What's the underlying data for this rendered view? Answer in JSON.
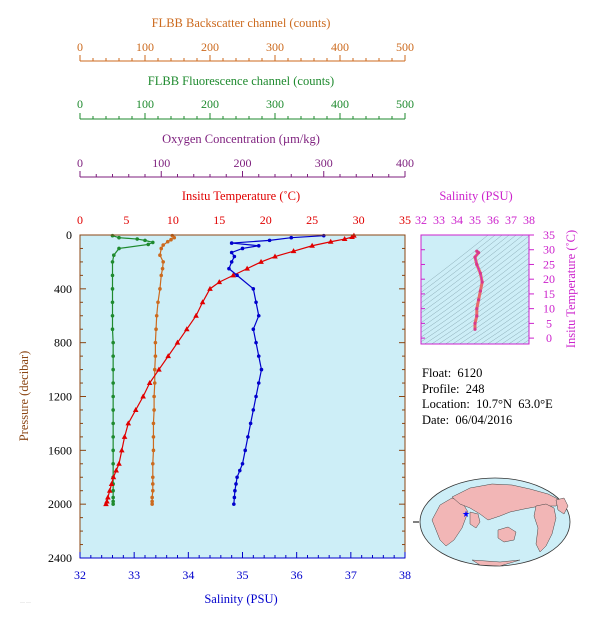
{
  "colors": {
    "backscatter": "#cc6a1e",
    "fluorescence": "#1e8a2e",
    "oxygen": "#7d1e7d",
    "temperature": "#e00000",
    "salinity_profile": "#0000cc",
    "salinity_axis": "#cc22cc",
    "plot_bg": "#cdeef7",
    "axis_frame": "#8b4513",
    "ts_curve": "#e86a6a"
  },
  "info": {
    "float": "Float:  6120",
    "profile": "Profile:  248",
    "location": "Location:  10.7°N  63.0°E",
    "date": "Date:  06/04/2016"
  },
  "map": {
    "marker_icon": "star-icon"
  },
  "chart_data": [
    {
      "type": "line",
      "title": "",
      "ylabel": "Pressure (decibar)",
      "ylim": [
        0,
        2400
      ],
      "yticks": [
        0,
        400,
        800,
        1200,
        1600,
        2000,
        2400
      ],
      "y_inverted": true,
      "grid": false,
      "axes": {
        "backscatter": {
          "label": "FLBB Backscatter channel (counts)",
          "range": [
            0,
            500
          ],
          "ticks": [
            0,
            100,
            200,
            300,
            400,
            500
          ]
        },
        "fluorescence": {
          "label": "FLBB Fluorescence channel (counts)",
          "range": [
            0,
            500
          ],
          "ticks": [
            0,
            100,
            200,
            300,
            400,
            500
          ]
        },
        "oxygen": {
          "label": "Oxygen Concentration (µm/kg)",
          "range": [
            0,
            400
          ],
          "ticks": [
            0,
            100,
            200,
            300,
            400
          ]
        },
        "temperature": {
          "label": "Insitu Temperature (˚C)",
          "range": [
            0,
            35
          ],
          "ticks": [
            0,
            5,
            10,
            15,
            20,
            25,
            30,
            35
          ]
        },
        "salinity": {
          "label": "Salinity (PSU)",
          "range": [
            32,
            38
          ],
          "ticks": [
            32,
            33,
            34,
            35,
            36,
            37,
            38
          ]
        }
      },
      "series": [
        {
          "axis": "backscatter",
          "marker": "circle",
          "x": [
            142,
            145,
            140,
            135,
            128,
            125,
            123,
            128,
            127,
            125,
            123,
            120,
            118,
            117,
            116,
            116,
            115,
            115,
            114,
            114,
            113,
            113,
            113,
            112,
            112,
            112,
            112,
            111,
            111,
            111
          ],
          "y": [
            5,
            20,
            35,
            50,
            75,
            100,
            150,
            200,
            250,
            300,
            400,
            500,
            600,
            700,
            800,
            900,
            1000,
            1100,
            1200,
            1300,
            1400,
            1500,
            1600,
            1700,
            1800,
            1850,
            1900,
            1950,
            1980,
            2000
          ]
        },
        {
          "axis": "fluorescence",
          "marker": "circle",
          "x": [
            50,
            60,
            88,
            100,
            112,
            105,
            60,
            52,
            50,
            50,
            50,
            50,
            50,
            50,
            51,
            51,
            51,
            51,
            51,
            51,
            51,
            51,
            51,
            51,
            51,
            51,
            51,
            51,
            51,
            51
          ],
          "y": [
            5,
            20,
            30,
            40,
            55,
            70,
            100,
            150,
            200,
            300,
            400,
            500,
            600,
            700,
            800,
            900,
            1000,
            1100,
            1200,
            1300,
            1400,
            1500,
            1600,
            1700,
            1800,
            1850,
            1900,
            1950,
            1980,
            2000
          ]
        },
        {
          "axis": "temperature",
          "marker": "triangle",
          "x": [
            29.5,
            29.3,
            28.5,
            27.0,
            25.0,
            23.0,
            21.0,
            19.5,
            18.0,
            16.5,
            15.0,
            14.0,
            13.2,
            12.5,
            11.5,
            10.5,
            9.5,
            8.5,
            7.5,
            6.8,
            6.0,
            5.2,
            4.8,
            4.5,
            4.2,
            3.9,
            3.6,
            3.4,
            3.2,
            3.0,
            2.9,
            2.8
          ],
          "y": [
            5,
            15,
            30,
            50,
            80,
            120,
            160,
            200,
            250,
            300,
            350,
            400,
            500,
            600,
            700,
            800,
            900,
            1000,
            1100,
            1200,
            1300,
            1400,
            1500,
            1600,
            1700,
            1750,
            1800,
            1850,
            1900,
            1950,
            1980,
            2000
          ]
        },
        {
          "axis": "salinity",
          "marker": "circle",
          "x": [
            36.5,
            35.9,
            35.5,
            34.8,
            35.3,
            35.0,
            34.8,
            34.85,
            34.8,
            34.75,
            34.9,
            35.2,
            35.25,
            35.3,
            35.2,
            35.25,
            35.3,
            35.35,
            35.3,
            35.25,
            35.2,
            35.15,
            35.1,
            35.05,
            35.0,
            34.95,
            34.9,
            34.88,
            34.86,
            34.85,
            34.84
          ],
          "y": [
            5,
            20,
            40,
            60,
            80,
            100,
            130,
            160,
            200,
            250,
            300,
            400,
            500,
            600,
            700,
            800,
            900,
            1000,
            1100,
            1200,
            1300,
            1400,
            1500,
            1600,
            1700,
            1750,
            1800,
            1850,
            1900,
            1950,
            2000
          ]
        }
      ]
    },
    {
      "type": "line",
      "title": "",
      "xlabel": "Salinity (PSU)",
      "ylabel": "Insitu Temperature (˚C)",
      "xlim": [
        32,
        38
      ],
      "ylim": [
        -2,
        35
      ],
      "xticks": [
        32,
        33,
        34,
        35,
        36,
        37,
        38
      ],
      "yticks": [
        0,
        5,
        10,
        15,
        20,
        25,
        30,
        35
      ],
      "grid": false,
      "series": [
        {
          "marker": "circle",
          "x": [
            35.1,
            35.2,
            35.0,
            35.1,
            35.3,
            35.4,
            35.3,
            35.2,
            35.1,
            35.1,
            35.0,
            35.0
          ],
          "y": [
            29.5,
            29.0,
            27.5,
            25.0,
            22.0,
            19.0,
            16.0,
            13.0,
            10.0,
            7.5,
            5.0,
            3.0
          ]
        }
      ]
    }
  ]
}
